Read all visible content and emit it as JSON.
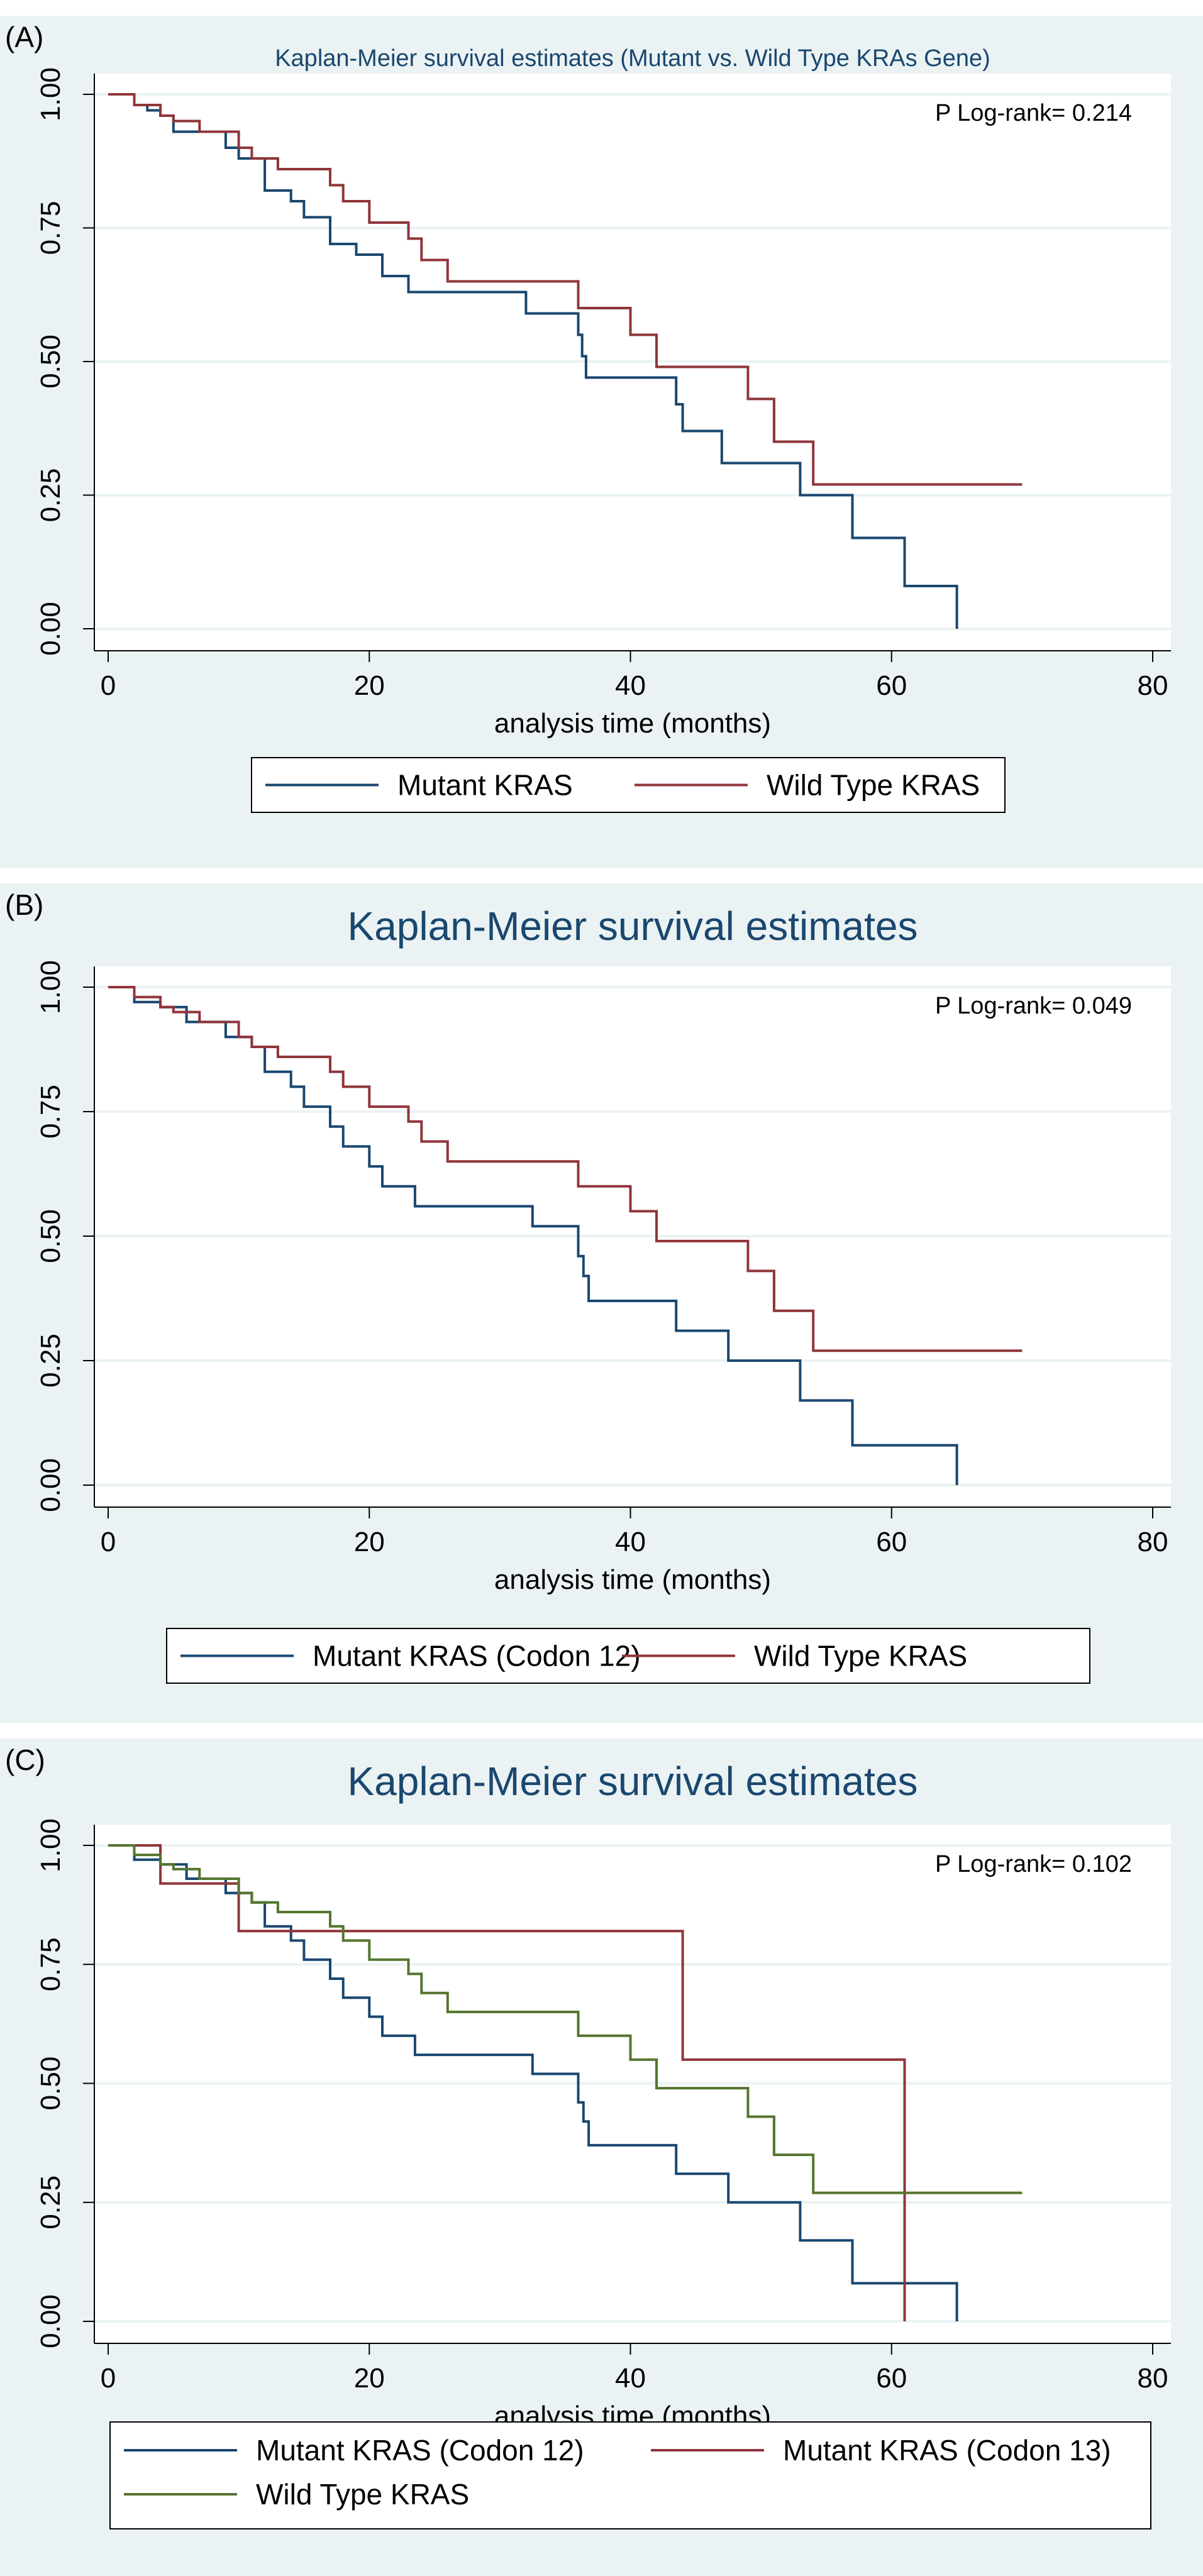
{
  "colors": {
    "panel_bg": "#eaf2f3",
    "plot_bg": "#ffffff",
    "grid": "#eaf2f3",
    "axis": "#000000",
    "text": "#000000",
    "title": "#1a476f",
    "mutant": "#1a476f",
    "codon13": "#90353b",
    "wild_red": "#90353b",
    "wild_green": "#55752f"
  },
  "chart_data": [
    {
      "panel_label": "(A)",
      "type": "line",
      "step": true,
      "title": "Kaplan-Meier survival estimates (Mutant vs. Wild Type KRAs Gene)",
      "title_size": "small",
      "xlabel": "analysis time (months)",
      "ylabel": "",
      "xlim": [
        0,
        80
      ],
      "ylim": [
        0,
        1
      ],
      "xticks": [
        "0",
        "20",
        "40",
        "60",
        "80"
      ],
      "yticks": [
        "0.00",
        "0.25",
        "0.50",
        "0.75",
        "1.00"
      ],
      "grid": true,
      "annotation": "P Log-rank= 0.214",
      "legend_position": "bottom",
      "series": [
        {
          "name": "Mutant KRAS",
          "color_key": "mutant",
          "x": [
            0,
            2,
            3,
            4,
            5,
            9,
            10,
            12,
            14,
            15,
            17,
            19,
            21,
            23,
            32,
            36,
            36.3,
            36.6,
            41,
            43,
            43.5,
            44,
            47,
            50,
            53,
            57,
            61,
            65
          ],
          "y": [
            1,
            0.98,
            0.97,
            0.96,
            0.93,
            0.9,
            0.88,
            0.82,
            0.8,
            0.77,
            0.72,
            0.7,
            0.66,
            0.63,
            0.59,
            0.55,
            0.51,
            0.47,
            0.47,
            0.47,
            0.42,
            0.37,
            0.31,
            0.31,
            0.25,
            0.17,
            0.08,
            0.0
          ]
        },
        {
          "name": "Wild Type KRAS",
          "color_key": "wild_red",
          "x": [
            0,
            2,
            4,
            5,
            7,
            10,
            11,
            13,
            17,
            18,
            20,
            22,
            23,
            24,
            26,
            36,
            40,
            42,
            49,
            51,
            54,
            70
          ],
          "y": [
            1,
            0.98,
            0.96,
            0.95,
            0.93,
            0.9,
            0.88,
            0.86,
            0.83,
            0.8,
            0.76,
            0.76,
            0.73,
            0.69,
            0.65,
            0.6,
            0.55,
            0.49,
            0.43,
            0.35,
            0.27,
            0.27
          ]
        }
      ]
    },
    {
      "panel_label": "(B)",
      "type": "line",
      "step": true,
      "title": "Kaplan-Meier survival estimates",
      "title_size": "large",
      "xlabel": "analysis time (months)",
      "ylabel": "",
      "xlim": [
        0,
        80
      ],
      "ylim": [
        0,
        1
      ],
      "xticks": [
        "0",
        "20",
        "40",
        "60",
        "80"
      ],
      "yticks": [
        "0.00",
        "0.25",
        "0.50",
        "0.75",
        "1.00"
      ],
      "grid": true,
      "annotation": "P Log-rank= 0.049",
      "legend_position": "bottom",
      "series": [
        {
          "name": "Mutant KRAS (Codon 12)",
          "color_key": "mutant",
          "x": [
            0,
            2,
            4,
            6,
            9,
            11,
            12,
            14,
            15,
            17,
            18,
            20,
            21,
            23.5,
            32.5,
            36,
            36.4,
            36.8,
            43.5,
            47.5,
            53,
            57,
            65
          ],
          "y": [
            1,
            0.97,
            0.96,
            0.93,
            0.9,
            0.88,
            0.83,
            0.8,
            0.76,
            0.72,
            0.68,
            0.64,
            0.6,
            0.56,
            0.52,
            0.46,
            0.42,
            0.37,
            0.31,
            0.25,
            0.17,
            0.08,
            0.0
          ]
        },
        {
          "name": "Wild Type KRAS",
          "color_key": "wild_red",
          "x": [
            0,
            2,
            4,
            5,
            7,
            10,
            11,
            13,
            17,
            18,
            20,
            22,
            23,
            24,
            26,
            36,
            40,
            42,
            49,
            51,
            54,
            70
          ],
          "y": [
            1,
            0.98,
            0.96,
            0.95,
            0.93,
            0.9,
            0.88,
            0.86,
            0.83,
            0.8,
            0.76,
            0.76,
            0.73,
            0.69,
            0.65,
            0.6,
            0.55,
            0.49,
            0.43,
            0.35,
            0.27,
            0.27
          ]
        }
      ]
    },
    {
      "panel_label": "(C)",
      "type": "line",
      "step": true,
      "title": "Kaplan-Meier survival estimates",
      "title_size": "large",
      "xlabel": "analysis time (months)",
      "ylabel": "",
      "xlim": [
        0,
        80
      ],
      "ylim": [
        0,
        1
      ],
      "xticks": [
        "0",
        "20",
        "40",
        "60",
        "80"
      ],
      "yticks": [
        "0.00",
        "0.25",
        "0.50",
        "0.75",
        "1.00"
      ],
      "grid": true,
      "annotation": "P Log-rank= 0.102",
      "legend_position": "bottom",
      "series": [
        {
          "name": "Mutant KRAS (Codon 12)",
          "color_key": "mutant",
          "x": [
            0,
            2,
            4,
            6,
            9,
            11,
            12,
            14,
            15,
            17,
            18,
            20,
            21,
            23.5,
            32.5,
            36,
            36.4,
            36.8,
            43.5,
            47.5,
            53,
            57,
            65
          ],
          "y": [
            1,
            0.97,
            0.96,
            0.93,
            0.9,
            0.88,
            0.83,
            0.8,
            0.76,
            0.72,
            0.68,
            0.64,
            0.6,
            0.56,
            0.52,
            0.46,
            0.42,
            0.37,
            0.31,
            0.25,
            0.17,
            0.08,
            0.0
          ]
        },
        {
          "name": "Mutant KRAS (Codon 13)",
          "color_key": "codon13",
          "x": [
            0,
            4,
            10,
            44,
            61
          ],
          "y": [
            1,
            0.92,
            0.82,
            0.55,
            0.0
          ]
        },
        {
          "name": "Wild Type KRAS",
          "color_key": "wild_green",
          "x": [
            0,
            2,
            4,
            5,
            7,
            10,
            11,
            13,
            17,
            18,
            20,
            22,
            23,
            24,
            26,
            36,
            40,
            42,
            49,
            51,
            54,
            70
          ],
          "y": [
            1,
            0.98,
            0.96,
            0.95,
            0.93,
            0.9,
            0.88,
            0.86,
            0.83,
            0.8,
            0.76,
            0.76,
            0.73,
            0.69,
            0.65,
            0.6,
            0.55,
            0.49,
            0.43,
            0.35,
            0.27,
            0.27
          ]
        }
      ]
    }
  ]
}
